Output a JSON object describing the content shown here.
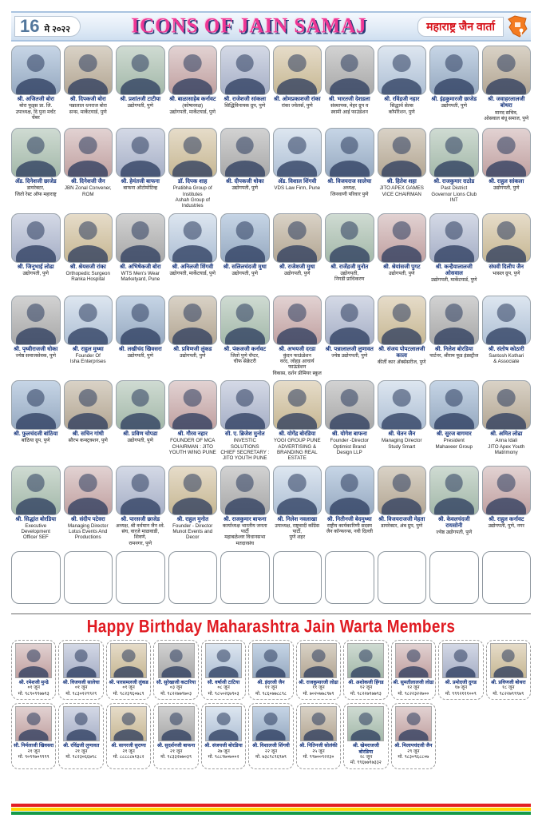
{
  "header": {
    "page_number": "16",
    "date": "मे २०२२",
    "title": "ICONS OF JAIN SAMAJ",
    "masthead": "महाराष्ट्र जैन वार्ता",
    "logo_icon": "maharashtra-map-mic-icon"
  },
  "colors": {
    "title_pink": "#ee3795",
    "title_shadow_navy": "#293a77",
    "name_blue": "#17357d",
    "masthead_red": "#d6131b",
    "birthday_red": "#e01b22",
    "strip_red": "#e31e24",
    "strip_yellow": "#ffd400",
    "strip_green": "#159a49"
  },
  "icons_grid": {
    "rows": [
      [
        {
          "name": "श्री. अजितजी बोरा",
          "lines": [
            "बोरा फूड्स प्रा. लि.",
            "उपाध्यक्ष, दि पुना मर्चंट चेंबर"
          ]
        },
        {
          "name": "श्री. दिपकजी बोरा",
          "lines": [
            "पन्नालाल धनराज बोरा",
            "सन्स, मार्केटयार्ड, पुणे"
          ]
        },
        {
          "name": "श्री. प्रशांतजी टाटीया",
          "lines": [
            "उद्योगपती, पुणे"
          ]
        },
        {
          "name": "श्री. बाळासाहेब कर्नावट",
          "lines": [
            "(कोषाध्यक्ष)",
            "उद्योगपती, मार्केटयार्ड, पुणे"
          ]
        },
        {
          "name": "श्री. राजेशजी सांकला",
          "lines": [
            "सिद्धिविनायक ग्रुप, पुणे"
          ]
        },
        {
          "name": "श्री. ओमप्रकाशजी रांका",
          "lines": [
            "रांका ज्वेलर्स, पुणे"
          ]
        },
        {
          "name": "श्री. भारतजी देशडला",
          "lines": [
            "संस्थापक, मेहर ग्रुप व",
            "स्वामी आई फाउंडेशन"
          ]
        },
        {
          "name": "श्री. रविंद्रजी नहार",
          "lines": [
            "सिद्धार्थ सेल्स",
            "कॉर्पोरेशन, पुणे"
          ]
        },
        {
          "name": "श्री. इंद्रकुमारजी छाजेड",
          "lines": [
            "उद्योगपती, पुणे"
          ]
        },
        {
          "name": "श्री. जवाहरलालजी बोथरा",
          "lines": [
            "मानद सचिव,",
            "ओसवाल बंधू समाज, पुणे"
          ]
        }
      ],
      [
        {
          "name": "अ‍ॅड. दिनेशजी छाजेड",
          "lines": [
            "डायरेक्टर,",
            "जितो रेस्ट ऑफ महाराष्ट्र"
          ]
        },
        {
          "name": "श्री. दिनेशजी जैन",
          "lines": [
            "JBN Zonal Convener,",
            "ROM"
          ]
        },
        {
          "name": "श्री. हेमंतजी बाफना",
          "lines": [
            "बाफना ऑटोमोटिव्ह"
          ]
        },
        {
          "name": "डॉ. दिपक शाह",
          "lines": [
            "Pratibha Group of Institutes",
            "Ashah Group of Industries"
          ]
        },
        {
          "name": "श्री. दीपकजी धोका",
          "lines": [
            "उद्योगपती, पुणे"
          ]
        },
        {
          "name": "अ‍ॅड. विशाल शिंगवी",
          "lines": [
            "VDS Law Firm, Pune"
          ]
        },
        {
          "name": "श्री. विजयराज सालेचा",
          "lines": [
            "अध्यक्ष,",
            "जिनवाणी परिवार पुणे"
          ]
        },
        {
          "name": "श्री. हितेश शहा",
          "lines": [
            "JITO APEX GAMES",
            "VICE CHAIRMAN"
          ]
        },
        {
          "name": "श्री. राजकुमार राठोड",
          "lines": [
            "Past District",
            "Governor Lions Club INT"
          ]
        },
        {
          "name": "श्री. राहुल सांकला",
          "lines": [
            "उद्योगपती, पुणे"
          ]
        }
      ],
      [
        {
          "name": "श्री. जिनूभाई लोढा",
          "lines": [
            "उद्योगपती, पुणे"
          ]
        },
        {
          "name": "श्री. श्रेयसजी रांका",
          "lines": [
            "Orthopedic Surgeon",
            "Ranka Hospital"
          ]
        },
        {
          "name": "श्री. अभिषेकजी बोरा",
          "lines": [
            "WTS Men's Wear",
            "Marketyard, Pune"
          ]
        },
        {
          "name": "श्री. अनिलजी शिंगवी",
          "lines": [
            "उद्योगपती, मार्केटयार्ड, पुणे"
          ]
        },
        {
          "name": "श्री. सलिलचंदजी मुथा",
          "lines": [
            "उद्योगपती, पुणे"
          ]
        },
        {
          "name": "श्री. राजेशजी मुथा",
          "lines": [
            "उद्योगपती, पुणे"
          ]
        },
        {
          "name": "श्री. राजेंद्रजी मुनोत",
          "lines": [
            "उद्योगपती,",
            "निगडी प्राधिकरण"
          ]
        },
        {
          "name": "श्री. श्रेयांसजी पुगट",
          "lines": [
            "उद्योगपती, पुणे"
          ]
        },
        {
          "name": "श्री. कन्हैयालालजी ओसवाल",
          "lines": [
            "उद्योगपती, मार्केटयार्ड, पुणे"
          ]
        },
        {
          "name": "संघवी दिलीप जैन",
          "lines": [
            "भासल ग्रुप, पुणे"
          ]
        }
      ],
      [
        {
          "name": "श्री. पृथ्वीराजजी धोका",
          "lines": [
            "ज्येष्ठ समाजसेवक, पुणे"
          ]
        },
        {
          "name": "श्री. राहुल मुथ्था",
          "lines": [
            "Founder Of",
            "Isha Enterprises"
          ]
        },
        {
          "name": "श्री. लखीचंद खिवसरा",
          "lines": [
            "उद्योगपती, पुणे"
          ]
        },
        {
          "name": "श्री. प्रविणजी लुंकड",
          "lines": [
            "उद्योगपती, पुणे"
          ]
        },
        {
          "name": "श्री. पंकजजी कर्नावट",
          "lines": [
            "जितो पुणे चॅप्टर,",
            "चीफ सेक्रेटरी"
          ]
        },
        {
          "name": "श्री. अभयजी दरडा",
          "lines": [
            "कुंदन फाऊंडेशन",
            "वरद, जोहड आचार्य फाऊंडेशन",
            "विकास, दर्शन प्रीमियर स्कूल"
          ]
        },
        {
          "name": "श्री. पन्नालालजी लुणावत",
          "lines": [
            "ज्येष्ठ उद्योगपती, पुणे"
          ]
        },
        {
          "name": "श्री. संजय पोपटलालजी काला",
          "lines": [
            "कीर्ती कार अ‍ॅक्सेसरीज, पुणे"
          ]
        },
        {
          "name": "श्री. निलेश बोरडिया",
          "lines": [
            "पार्टनर, श्रीराम फूड इंडस्ट्रीज"
          ]
        },
        {
          "name": "श्री. संतोष कोठारी",
          "lines": [
            "Santosh Kothari",
            "& Associate"
          ]
        }
      ],
      [
        {
          "name": "श्री. फुलचंदजी बांठिया",
          "lines": [
            "बांठिया ग्रुप, पुणे"
          ]
        },
        {
          "name": "श्री. सचिन गांधी",
          "lines": [
            "सौरभ कन्स्ट्रक्शन, पुणे"
          ]
        },
        {
          "name": "श्री. प्रविण चोपडा",
          "lines": [
            "उद्योगपती, पुणे"
          ]
        },
        {
          "name": "श्री. गौरव नहार",
          "lines": [
            "FOUNDER OF MCA",
            "CHAIRMAN : JITO YOUTH WING PUNE"
          ]
        },
        {
          "name": "सी. ए. ब्रिजेश मुनोत",
          "lines": [
            "INVESTIC SOLUTIONS",
            "CHIEF SECRETARY : JITO YOUTH PUNE"
          ]
        },
        {
          "name": "श्री. योगेंद्र बोरडिया",
          "lines": [
            "YOGI GROUP PUNE",
            "ADVERTISING & BRANDING REAL ESTATE"
          ]
        },
        {
          "name": "श्री. योगेश बाफना",
          "lines": [
            "Founder -Director",
            "Optimist Brand Design LLP"
          ]
        },
        {
          "name": "श्री. चेतन जैन",
          "lines": [
            "Managing Director",
            "Study Smart"
          ]
        },
        {
          "name": "श्री. सुरज बागमार",
          "lines": [
            "President",
            "Mahaveer Group"
          ]
        },
        {
          "name": "श्री. अमित लोढा",
          "lines": [
            "Anna Idali",
            "JITO Apex Youth Matrimony"
          ]
        }
      ],
      [
        {
          "name": "श्री. सिद्धांत बोरडिया",
          "lines": [
            "Executive Development",
            "Officer SEF"
          ]
        },
        {
          "name": "श्री. संदीप पटेवरा",
          "lines": [
            "Managing Director",
            "Lotus Events And Productions"
          ]
        },
        {
          "name": "श्री. पारसजी छाजेड",
          "lines": [
            "अध्यक्ष, श्री वर्धमान जैन श्वे.",
            "संघ, वारजे माळवाडी, शिवणे,",
            "रामनगर, पुणे"
          ]
        },
        {
          "name": "श्री. राहुल मुनोत",
          "lines": [
            "Founder - Director",
            "Munot Events and Decor"
          ]
        },
        {
          "name": "श्री. राजकुमार बाफना",
          "lines": [
            "कार्याध्यक्ष भारतीय जनता पार्टी",
            "महाबळेश्वर विधानसभा मतदारसंघ"
          ]
        },
        {
          "name": "श्री. निलेश नवलाखा",
          "lines": [
            "उपाध्यक्ष, राष्ट्रवादी काँग्रेस पार्टी,",
            "पुणे शहर"
          ]
        },
        {
          "name": "श्री. नितीनजी बेदमुथ्था",
          "lines": [
            "राष्ट्रीय कार्यकारिणी सदस्य",
            "जैन कॉन्फरन्स, नवी दिल्ली"
          ]
        },
        {
          "name": "श्री. विजयराजजी मेहता",
          "lines": [
            "डायरेक्टर, अंब ग्रुप, पुणे"
          ]
        },
        {
          "name": "श्री. केवलचंदजी रायसोनी",
          "lines": [
            "ज्येष्ठ उद्योगपती, पुणे"
          ]
        },
        {
          "name": "श्री. राहुल कर्नावट",
          "lines": [
            "उद्योगपती, पुणे, नगर"
          ]
        }
      ]
    ]
  },
  "empty_row_count": 10,
  "birthday": {
    "heading": "Happy Birthday Maharashtra Jain Warta Members",
    "row1": [
      {
        "name": "श्री. रमेशजी मुन्ढे",
        "date": "०१ जून",
        "phone": "मो. ९८९०९९७७९३"
      },
      {
        "name": "श्री. विजयजी सालेचा",
        "date": "०१ जून",
        "phone": "मो. ९८३०१२९९२९"
      },
      {
        "name": "श्री. पारसमलजी लुंकड",
        "date": "०१ जून",
        "phone": "मो. ९८२३९६०७८९"
      },
      {
        "name": "सौ. सुरेखाजी कटारिया",
        "date": "०३ जून",
        "phone": "मो. ९८२२७७९७०३"
      },
      {
        "name": "सौ. वर्षाजी टाटिया",
        "date": "०८ जून",
        "phone": "मो. ९८५०२६७९०३"
      },
      {
        "name": "श्री. इंदरजी जैन",
        "date": "११ जून",
        "phone": "मो. ९८६०७७८८९८"
      },
      {
        "name": "श्री. राजकुमारजी लोढा",
        "date": "११ जून",
        "phone": "मो. ७०२०७७८९७९"
      },
      {
        "name": "श्री. अशोकजी हिंगड",
        "date": "१२ जून",
        "phone": "मो. ९८२२७९७७९३"
      },
      {
        "name": "श्री. सुमतीलालजी लोढा",
        "date": "१२ जून",
        "phone": "मो. ९८२२३२२७००"
      },
      {
        "name": "श्री. प्रमोदजी दुगड",
        "date": "१७ जून",
        "phone": "मो. ९९९२१११००९"
      },
      {
        "name": "श्री. प्रविणजी बोथरा",
        "date": "१८ जून",
        "phone": "मो. ९८२२७९९९७९"
      }
    ],
    "row2": [
      {
        "name": "सौ. निर्मलाजी खिवसरा",
        "date": "२१ जून",
        "phone": "मो. ९०९९७०९९९९"
      },
      {
        "name": "श्री. रविंद्रजी लुणावत",
        "date": "२१ जून",
        "phone": "मो. ९८२३०६६७९८"
      },
      {
        "name": "श्री. सागरजी सुराणा",
        "date": "२१ जून",
        "phone": "मो. ८८८८८७१३८२"
      },
      {
        "name": "श्री. सुदर्शनजी बाफना",
        "date": "२१ जून",
        "phone": "मो. ९८३३२७७०३९"
      },
      {
        "name": "श्री. संजयजी बोरडिया",
        "date": "२७ जून",
        "phone": "मो. ९८८९७०७००२"
      },
      {
        "name": "श्री. विशालजी शिंगवी",
        "date": "२२ जून",
        "phone": "मो. ७३८९८९६९७९"
      },
      {
        "name": "श्री. नितिनजी सोलंकी",
        "date": "२५ जून",
        "phone": "मो. ९९७००९२२३०"
      },
      {
        "name": "श्री. खेमराजजी बोरडिया",
        "date": "२८ जून",
        "phone": "मो. ९९६७७९७३३२"
      },
      {
        "name": "श्री. मिलापचंदजी जैन",
        "date": "२९ जून",
        "phone": "मो. ९८३०९६८८०७"
      }
    ]
  }
}
